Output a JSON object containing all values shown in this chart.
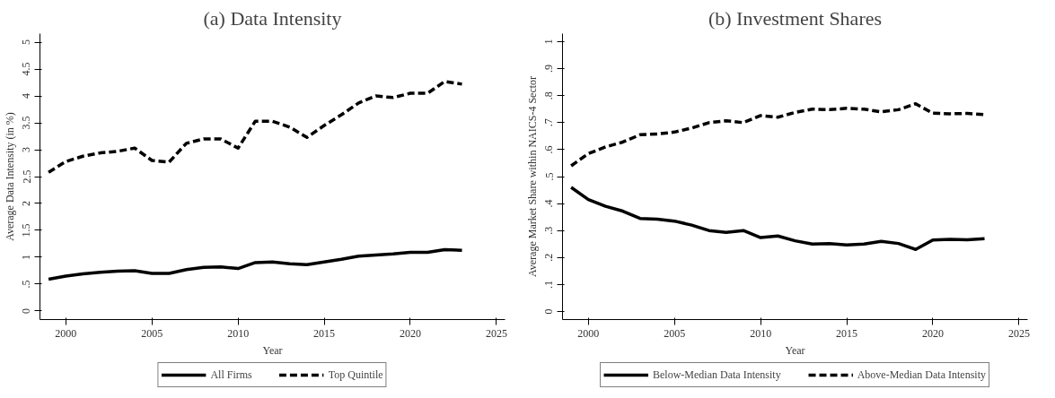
{
  "chart_data": [
    {
      "type": "line",
      "title": "(a) Data Intensity",
      "xlabel": "Year",
      "ylabel": "Average Data Intensity (in %)",
      "x": [
        1999,
        2000,
        2001,
        2002,
        2003,
        2004,
        2005,
        2006,
        2007,
        2008,
        2009,
        2010,
        2011,
        2012,
        2013,
        2014,
        2015,
        2016,
        2017,
        2018,
        2019,
        2020,
        2021,
        2022,
        2023
      ],
      "xlim": [
        1998.5,
        2025.5
      ],
      "xticks": [
        2000,
        2005,
        2010,
        2015,
        2020,
        2025
      ],
      "ylim": [
        -0.16,
        5.16
      ],
      "yticks": [
        0,
        {
          "value": 0.5,
          "label": ".5"
        },
        1,
        1.5,
        2,
        2.5,
        3,
        3.5,
        4,
        4.5,
        5
      ],
      "grid": false,
      "legend": "bottom",
      "marker": "none",
      "series": [
        {
          "name": "All Firms",
          "color": "#000000",
          "line_style": "solid",
          "values": [
            0.59,
            0.65,
            0.69,
            0.72,
            0.74,
            0.75,
            0.7,
            0.7,
            0.77,
            0.81,
            0.82,
            0.79,
            0.9,
            0.91,
            0.88,
            0.86,
            0.91,
            0.96,
            1.02,
            1.04,
            1.06,
            1.09,
            1.09,
            1.14,
            1.13
          ]
        },
        {
          "name": "Top Quintile",
          "color": "#000000",
          "line_style": "dashed",
          "values": [
            2.58,
            2.78,
            2.88,
            2.94,
            2.97,
            3.03,
            2.8,
            2.77,
            3.12,
            3.2,
            3.2,
            3.03,
            3.53,
            3.53,
            3.42,
            3.23,
            3.45,
            3.65,
            3.87,
            4.0,
            3.97,
            4.05,
            4.05,
            4.27,
            4.22
          ]
        }
      ]
    },
    {
      "type": "line",
      "title": "(b) Investment Shares",
      "xlabel": "Year",
      "ylabel": "Average Market Share within NAICS-4 Sector",
      "x": [
        1999,
        2000,
        2001,
        2002,
        2003,
        2004,
        2005,
        2006,
        2007,
        2008,
        2009,
        2010,
        2011,
        2012,
        2013,
        2014,
        2015,
        2016,
        2017,
        2018,
        2019,
        2020,
        2021,
        2022,
        2023
      ],
      "xlim": [
        1998.5,
        2025.5
      ],
      "xticks": [
        2000,
        2005,
        2010,
        2015,
        2020,
        2025
      ],
      "ylim": [
        -0.03,
        1.03
      ],
      "yticks": [
        0,
        {
          "value": 0.1,
          "label": ".1"
        },
        {
          "value": 0.2,
          "label": ".2"
        },
        {
          "value": 0.3,
          "label": ".3"
        },
        {
          "value": 0.4,
          "label": ".4"
        },
        {
          "value": 0.5,
          "label": ".5"
        },
        {
          "value": 0.6,
          "label": ".6"
        },
        {
          "value": 0.7,
          "label": ".7"
        },
        {
          "value": 0.8,
          "label": ".8"
        },
        {
          "value": 0.9,
          "label": ".9"
        },
        1
      ],
      "grid": false,
      "legend": "bottom",
      "marker": "none",
      "series": [
        {
          "name": "Below-Median Data Intensity",
          "color": "#000000",
          "line_style": "solid",
          "values": [
            0.46,
            0.415,
            0.39,
            0.372,
            0.345,
            0.342,
            0.335,
            0.32,
            0.3,
            0.293,
            0.3,
            0.274,
            0.28,
            0.262,
            0.25,
            0.252,
            0.247,
            0.25,
            0.26,
            0.252,
            0.23,
            0.265,
            0.267,
            0.266,
            0.27
          ]
        },
        {
          "name": "Above-Median Data Intensity",
          "color": "#000000",
          "line_style": "dashed",
          "values": [
            0.54,
            0.585,
            0.61,
            0.628,
            0.655,
            0.658,
            0.665,
            0.68,
            0.7,
            0.707,
            0.7,
            0.726,
            0.72,
            0.738,
            0.75,
            0.748,
            0.753,
            0.75,
            0.74,
            0.748,
            0.77,
            0.735,
            0.733,
            0.734,
            0.73
          ]
        }
      ]
    }
  ]
}
